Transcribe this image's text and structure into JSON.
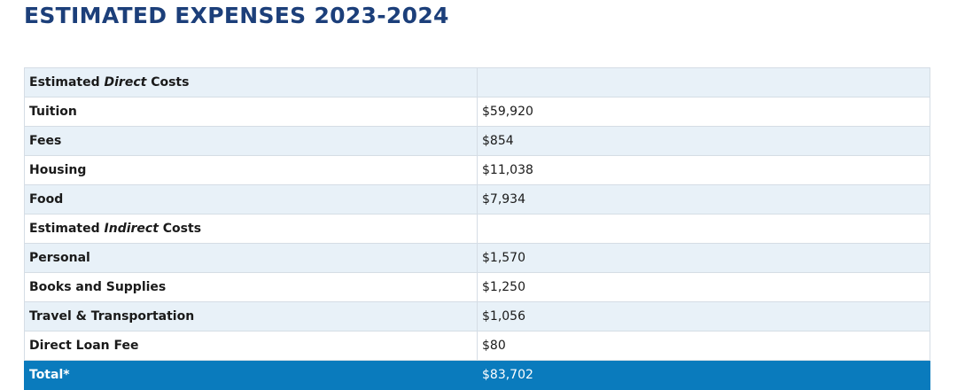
{
  "page": {
    "title": "ESTIMATED EXPENSES 2023-2024"
  },
  "colors": {
    "title": "#1c3f7a",
    "row_shade": "#e8f1f8",
    "total_bg": "#0a7bbd",
    "total_text": "#ffffff"
  },
  "table": {
    "sections": {
      "direct": {
        "prefix": "Estimated ",
        "emphasis": "Direct",
        "suffix": " Costs"
      },
      "indirect": {
        "prefix": "Estimated ",
        "emphasis": "Indirect",
        "suffix": " Costs"
      }
    },
    "rows": [
      {
        "label": "Tuition",
        "value": "$59,920"
      },
      {
        "label": "Fees",
        "value": "$854"
      },
      {
        "label": "Housing",
        "value": "$11,038"
      },
      {
        "label": "Food",
        "value": "$7,934"
      },
      {
        "label": "Personal",
        "value": "$1,570"
      },
      {
        "label": "Books and Supplies",
        "value": "$1,250"
      },
      {
        "label": "Travel & Transportation",
        "value": "$1,056"
      },
      {
        "label": "Direct Loan Fee",
        "value": "$80"
      }
    ],
    "total": {
      "label": "Total*",
      "value": "$83,702"
    }
  }
}
